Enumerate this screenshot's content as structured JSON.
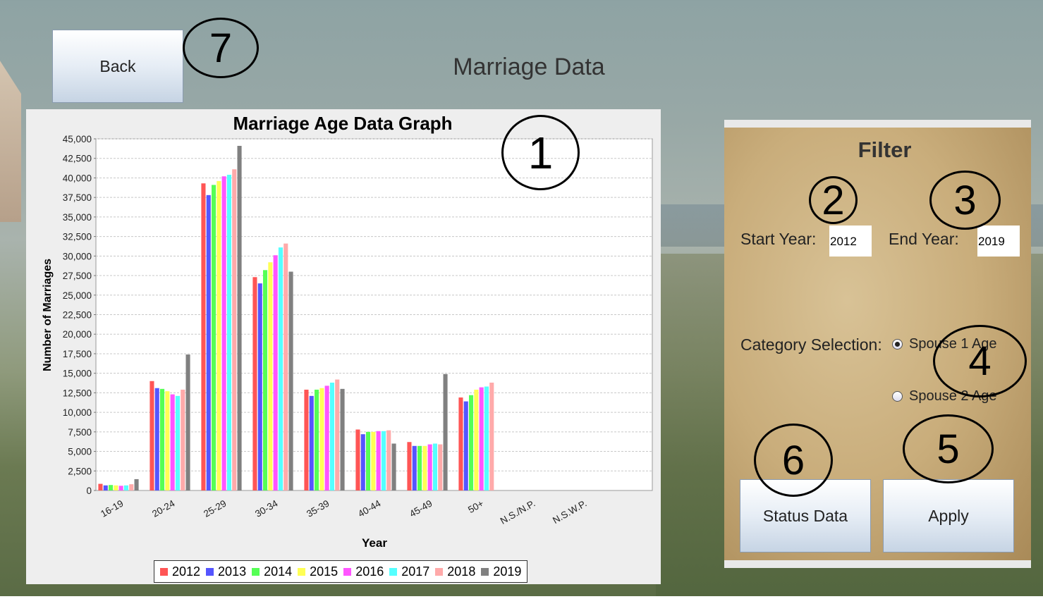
{
  "header": {
    "back_label": "Back",
    "title": "Marriage Data"
  },
  "annotations": [
    "1",
    "2",
    "3",
    "4",
    "5",
    "6",
    "7"
  ],
  "filter": {
    "title": "Filter",
    "start_label": "Start Year:",
    "start_value": "2012",
    "end_label": "End Year:",
    "end_value": "2019",
    "category_label": "Category Selection:",
    "options": [
      {
        "label": "Spouse 1 Age",
        "selected": true
      },
      {
        "label": "Spouse 2 Age",
        "selected": false
      }
    ],
    "status_label": "Status Data",
    "apply_label": "Apply"
  },
  "chart_data": {
    "type": "bar",
    "title": "Marriage Age Data Graph",
    "xlabel": "Year",
    "ylabel": "Number of Marriages",
    "ylim": [
      0,
      45000
    ],
    "ytick_step": 2500,
    "ytick_labels": [
      "0",
      "2,500",
      "5,000",
      "7,500",
      "10,000",
      "12,500",
      "15,000",
      "17,500",
      "20,000",
      "22,500",
      "25,000",
      "27,500",
      "30,000",
      "32,500",
      "35,000",
      "37,500",
      "40,000",
      "42,500",
      "45,000"
    ],
    "grid": true,
    "legend_position": "bottom",
    "categories": [
      "16-19",
      "20-24",
      "25-29",
      "30-34",
      "35-39",
      "40-44",
      "45-49",
      "50+",
      "N.S./N.P.",
      "N.S.W.P."
    ],
    "series": [
      {
        "name": "2012",
        "color": "#ff5555",
        "values": [
          850,
          14000,
          39300,
          27300,
          12900,
          7800,
          6200,
          11900,
          0,
          0
        ]
      },
      {
        "name": "2013",
        "color": "#5555ff",
        "values": [
          650,
          13100,
          37800,
          26500,
          12100,
          7200,
          5700,
          11400,
          0,
          0
        ]
      },
      {
        "name": "2014",
        "color": "#55ff55",
        "values": [
          700,
          13000,
          39100,
          28200,
          12900,
          7500,
          5700,
          12200,
          0,
          0
        ]
      },
      {
        "name": "2015",
        "color": "#ffff55",
        "values": [
          650,
          12700,
          39600,
          29200,
          13100,
          7500,
          5700,
          12900,
          0,
          0
        ]
      },
      {
        "name": "2016",
        "color": "#ff55ff",
        "values": [
          600,
          12300,
          40200,
          30100,
          13400,
          7600,
          5900,
          13200,
          0,
          0
        ]
      },
      {
        "name": "2017",
        "color": "#55ffff",
        "values": [
          650,
          12100,
          40400,
          31100,
          13800,
          7600,
          6000,
          13300,
          0,
          0
        ]
      },
      {
        "name": "2018",
        "color": "#ffaaaa",
        "values": [
          800,
          12900,
          41100,
          31600,
          14200,
          7700,
          5900,
          13800,
          0,
          0
        ]
      },
      {
        "name": "2019",
        "color": "#808080",
        "values": [
          1450,
          17400,
          44100,
          28000,
          13000,
          6000,
          14900,
          0,
          0,
          0
        ]
      }
    ]
  }
}
